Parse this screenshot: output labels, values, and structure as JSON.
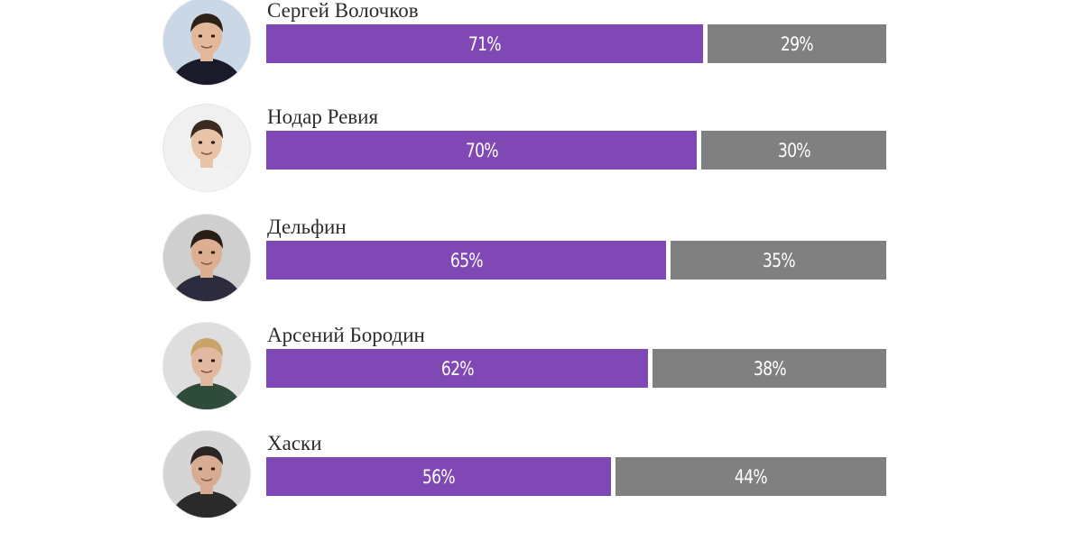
{
  "colors": {
    "yes": "#7f48b4",
    "no": "#808080"
  },
  "chart_data": {
    "type": "bar",
    "orientation": "horizontal-stacked",
    "categories": [
      "Сергей Волочков",
      "Нодар Ревия",
      "Дельфин",
      "Арсений Бородин",
      "Хаски"
    ],
    "series": [
      {
        "values": [
          71,
          70,
          65,
          62,
          56
        ],
        "color": "#7f48b4"
      },
      {
        "values": [
          29,
          30,
          35,
          38,
          44
        ],
        "color": "#808080"
      }
    ],
    "value_suffix": "%",
    "ylim": [
      0,
      100
    ]
  },
  "rows": [
    {
      "name": "Сергей Волочков",
      "yes_label": "71%",
      "no_label": "29%",
      "avatar_icon": "person-photo-icon"
    },
    {
      "name": "Нодар Ревия",
      "yes_label": "70%",
      "no_label": "30%",
      "avatar_icon": "person-photo-icon"
    },
    {
      "name": "Дельфин",
      "yes_label": "65%",
      "no_label": "35%",
      "avatar_icon": "person-photo-icon"
    },
    {
      "name": "Арсений Бородин",
      "yes_label": "62%",
      "no_label": "38%",
      "avatar_icon": "person-photo-icon"
    },
    {
      "name": "Хаски",
      "yes_label": "56%",
      "no_label": "44%",
      "avatar_icon": "person-photo-icon"
    }
  ]
}
